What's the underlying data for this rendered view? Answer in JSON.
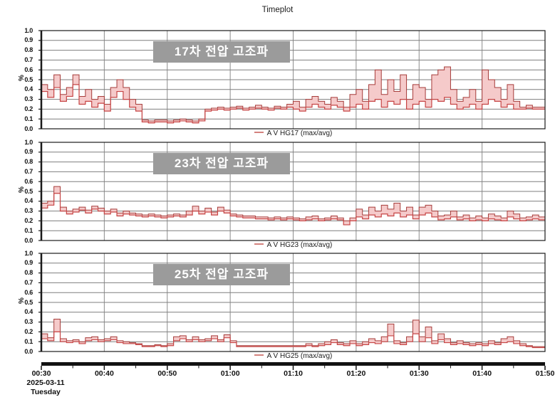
{
  "title": "Timeplot",
  "date_label": {
    "date": "2025-03-11",
    "day": "Tuesday"
  },
  "x_axis": {
    "ticks": [
      "00:30",
      "00:40",
      "00:50",
      "01:00",
      "01:10",
      "01:20",
      "01:30",
      "01:40",
      "01:50"
    ],
    "minor_tick_every_minutes": 5
  },
  "colors": {
    "band_fill": "#f5caca",
    "max_line": "#a63c3a",
    "avg_line": "#c64444",
    "grid_h": "#7f7f7f",
    "grid_v": "#8c8c8c",
    "frame": "#1a1a1a",
    "axis_bar": "#111111",
    "label_box_bg": "#9b9b9b",
    "label_box_text": "#ffffff",
    "legend_dash": "#d4827e"
  },
  "chart_data": [
    {
      "type": "area",
      "title": "17차 전압 고조파",
      "legend": "A V HG17 (max/avg)",
      "ylabel": "%",
      "ylim": [
        0,
        1
      ],
      "ytick_step": 0.1,
      "x_start": "00:30",
      "x_end": "01:50",
      "step_minutes": 1,
      "grid": true,
      "legend_position": "bottom-center",
      "series": [
        {
          "name": "max",
          "values": [
            0.45,
            0.4,
            0.55,
            0.35,
            0.42,
            0.55,
            0.33,
            0.4,
            0.3,
            0.33,
            0.25,
            0.42,
            0.5,
            0.42,
            0.3,
            0.25,
            0.09,
            0.08,
            0.09,
            0.09,
            0.08,
            0.09,
            0.1,
            0.09,
            0.08,
            0.1,
            0.2,
            0.21,
            0.22,
            0.21,
            0.22,
            0.23,
            0.21,
            0.22,
            0.24,
            0.22,
            0.21,
            0.23,
            0.22,
            0.25,
            0.28,
            0.22,
            0.3,
            0.33,
            0.28,
            0.25,
            0.32,
            0.28,
            0.22,
            0.35,
            0.4,
            0.28,
            0.45,
            0.6,
            0.35,
            0.5,
            0.38,
            0.55,
            0.3,
            0.45,
            0.42,
            0.3,
            0.55,
            0.6,
            0.63,
            0.4,
            0.28,
            0.32,
            0.4,
            0.28,
            0.6,
            0.5,
            0.42,
            0.3,
            0.45,
            0.28,
            0.22,
            0.24,
            0.22,
            0.22
          ]
        },
        {
          "name": "avg",
          "values": [
            0.38,
            0.32,
            0.42,
            0.28,
            0.33,
            0.45,
            0.25,
            0.28,
            0.22,
            0.26,
            0.18,
            0.32,
            0.38,
            0.3,
            0.22,
            0.18,
            0.07,
            0.06,
            0.07,
            0.07,
            0.06,
            0.07,
            0.08,
            0.07,
            0.06,
            0.08,
            0.18,
            0.19,
            0.2,
            0.19,
            0.2,
            0.21,
            0.19,
            0.2,
            0.21,
            0.2,
            0.19,
            0.21,
            0.2,
            0.22,
            0.2,
            0.18,
            0.22,
            0.25,
            0.22,
            0.2,
            0.24,
            0.22,
            0.18,
            0.22,
            0.25,
            0.2,
            0.28,
            0.3,
            0.22,
            0.28,
            0.25,
            0.3,
            0.2,
            0.25,
            0.28,
            0.22,
            0.3,
            0.28,
            0.32,
            0.25,
            0.2,
            0.22,
            0.25,
            0.2,
            0.25,
            0.3,
            0.28,
            0.22,
            0.25,
            0.2,
            0.2,
            0.21,
            0.2,
            0.2
          ]
        }
      ]
    },
    {
      "type": "area",
      "title": "23차 전압 고조파",
      "legend": "A V HG23 (max/avg)",
      "ylabel": "%",
      "ylim": [
        0,
        1
      ],
      "ytick_step": 0.1,
      "x_start": "00:30",
      "x_end": "01:50",
      "step_minutes": 1,
      "grid": true,
      "legend_position": "bottom-center",
      "series": [
        {
          "name": "max",
          "values": [
            0.38,
            0.4,
            0.55,
            0.34,
            0.3,
            0.32,
            0.34,
            0.31,
            0.35,
            0.33,
            0.3,
            0.32,
            0.28,
            0.3,
            0.28,
            0.27,
            0.26,
            0.27,
            0.26,
            0.25,
            0.26,
            0.27,
            0.26,
            0.3,
            0.35,
            0.3,
            0.33,
            0.29,
            0.34,
            0.31,
            0.27,
            0.26,
            0.25,
            0.25,
            0.24,
            0.24,
            0.23,
            0.24,
            0.23,
            0.24,
            0.23,
            0.22,
            0.24,
            0.25,
            0.22,
            0.23,
            0.25,
            0.23,
            0.2,
            0.23,
            0.32,
            0.26,
            0.34,
            0.3,
            0.36,
            0.32,
            0.38,
            0.3,
            0.34,
            0.26,
            0.34,
            0.36,
            0.3,
            0.25,
            0.26,
            0.3,
            0.24,
            0.26,
            0.23,
            0.25,
            0.23,
            0.27,
            0.25,
            0.23,
            0.3,
            0.27,
            0.23,
            0.24,
            0.26,
            0.24
          ]
        },
        {
          "name": "avg",
          "values": [
            0.33,
            0.36,
            0.48,
            0.3,
            0.27,
            0.29,
            0.31,
            0.28,
            0.32,
            0.3,
            0.27,
            0.29,
            0.25,
            0.27,
            0.26,
            0.25,
            0.24,
            0.25,
            0.24,
            0.23,
            0.24,
            0.25,
            0.24,
            0.26,
            0.3,
            0.27,
            0.29,
            0.26,
            0.3,
            0.28,
            0.25,
            0.24,
            0.23,
            0.23,
            0.22,
            0.22,
            0.21,
            0.22,
            0.21,
            0.22,
            0.21,
            0.2,
            0.21,
            0.22,
            0.2,
            0.21,
            0.22,
            0.21,
            0.16,
            0.2,
            0.24,
            0.22,
            0.26,
            0.24,
            0.27,
            0.25,
            0.28,
            0.24,
            0.26,
            0.22,
            0.26,
            0.28,
            0.24,
            0.21,
            0.22,
            0.24,
            0.21,
            0.22,
            0.2,
            0.21,
            0.2,
            0.22,
            0.21,
            0.2,
            0.24,
            0.22,
            0.2,
            0.21,
            0.22,
            0.21
          ]
        }
      ]
    },
    {
      "type": "area",
      "title": "25차 전압 고조파",
      "legend": "A V HG25 (max/avg)",
      "ylabel": "%",
      "ylim": [
        0,
        1
      ],
      "ytick_step": 0.1,
      "x_start": "00:30",
      "x_end": "01:50",
      "step_minutes": 1,
      "grid": true,
      "legend_position": "bottom-center",
      "series": [
        {
          "name": "max",
          "values": [
            0.18,
            0.14,
            0.33,
            0.13,
            0.11,
            0.12,
            0.1,
            0.14,
            0.15,
            0.12,
            0.13,
            0.15,
            0.11,
            0.1,
            0.09,
            0.08,
            0.06,
            0.06,
            0.07,
            0.06,
            0.08,
            0.15,
            0.16,
            0.12,
            0.15,
            0.12,
            0.13,
            0.16,
            0.12,
            0.17,
            0.11,
            0.06,
            0.06,
            0.06,
            0.06,
            0.06,
            0.06,
            0.06,
            0.06,
            0.06,
            0.06,
            0.06,
            0.08,
            0.06,
            0.08,
            0.1,
            0.12,
            0.09,
            0.08,
            0.11,
            0.08,
            0.1,
            0.13,
            0.11,
            0.15,
            0.28,
            0.11,
            0.09,
            0.15,
            0.32,
            0.15,
            0.25,
            0.11,
            0.18,
            0.13,
            0.09,
            0.11,
            0.09,
            0.08,
            0.09,
            0.08,
            0.11,
            0.09,
            0.13,
            0.15,
            0.11,
            0.08,
            0.06,
            0.05,
            0.05
          ]
        },
        {
          "name": "avg",
          "values": [
            0.13,
            0.11,
            0.2,
            0.1,
            0.09,
            0.1,
            0.08,
            0.11,
            0.12,
            0.1,
            0.11,
            0.12,
            0.09,
            0.08,
            0.08,
            0.07,
            0.05,
            0.05,
            0.06,
            0.05,
            0.06,
            0.11,
            0.13,
            0.1,
            0.12,
            0.1,
            0.11,
            0.13,
            0.1,
            0.14,
            0.09,
            0.05,
            0.05,
            0.05,
            0.05,
            0.05,
            0.05,
            0.05,
            0.05,
            0.05,
            0.05,
            0.05,
            0.06,
            0.05,
            0.06,
            0.07,
            0.09,
            0.07,
            0.06,
            0.08,
            0.06,
            0.07,
            0.09,
            0.08,
            0.1,
            0.16,
            0.08,
            0.07,
            0.1,
            0.18,
            0.1,
            0.14,
            0.08,
            0.12,
            0.09,
            0.07,
            0.08,
            0.07,
            0.06,
            0.07,
            0.06,
            0.08,
            0.07,
            0.09,
            0.1,
            0.08,
            0.06,
            0.05,
            0.04,
            0.04
          ]
        }
      ]
    }
  ]
}
